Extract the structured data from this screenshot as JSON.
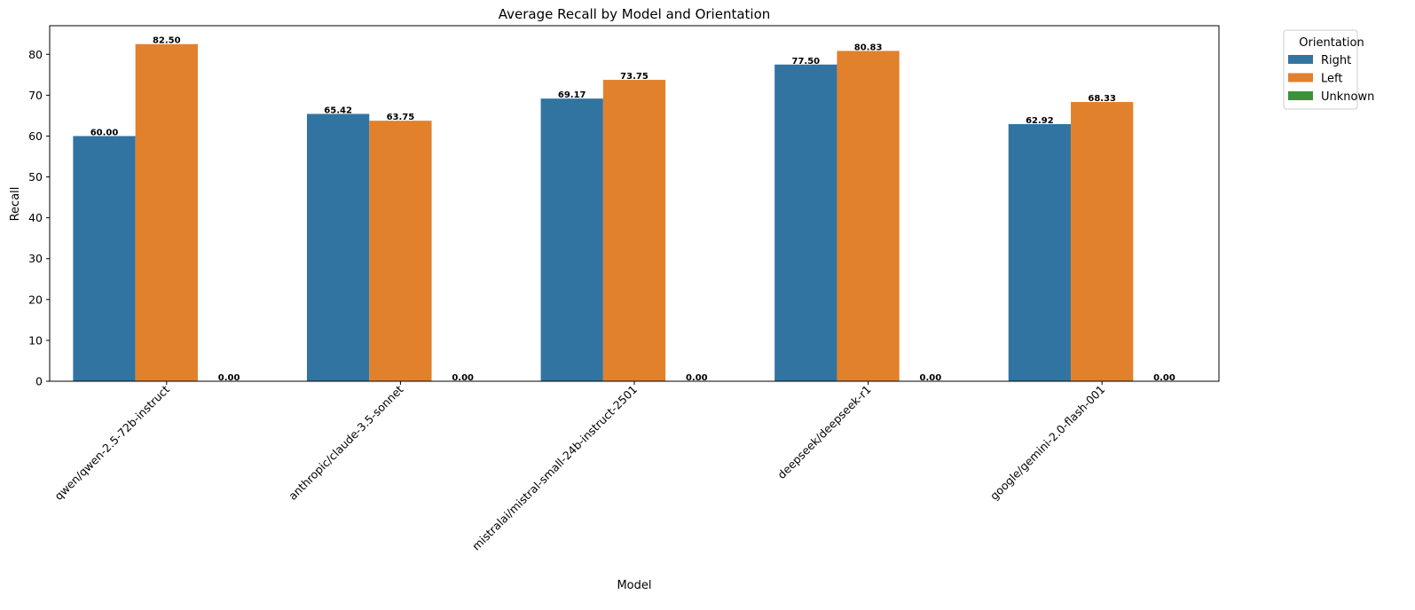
{
  "chart_data": {
    "type": "bar",
    "title": "Average Recall by Model and Orientation",
    "xlabel": "Model",
    "ylabel": "Recall",
    "ylim": [
      0,
      87
    ],
    "yticks": [
      0,
      10,
      20,
      30,
      40,
      50,
      60,
      70,
      80
    ],
    "grid": false,
    "legend_title": "Orientation",
    "legend_position": "outside-top-right",
    "categories": [
      "qwen/qwen-2.5-72b-instruct",
      "anthropic/claude-3.5-sonnet",
      "mistralai/mistral-small-24b-instruct-2501",
      "deepseek/deepseek-r1",
      "google/gemini-2.0-flash-001"
    ],
    "series": [
      {
        "name": "Right",
        "color": "#3274a1",
        "values": [
          60.0,
          65.42,
          69.17,
          77.5,
          62.92
        ],
        "labels": [
          "60.00",
          "65.42",
          "69.17",
          "77.50",
          "62.92"
        ]
      },
      {
        "name": "Left",
        "color": "#e1812c",
        "values": [
          82.5,
          63.75,
          73.75,
          80.83,
          68.33
        ],
        "labels": [
          "82.50",
          "63.75",
          "73.75",
          "80.83",
          "68.33"
        ]
      },
      {
        "name": "Unknown",
        "color": "#3a923a",
        "values": [
          0.0,
          0.0,
          0.0,
          0.0,
          0.0
        ],
        "labels": [
          "0.00",
          "0.00",
          "0.00",
          "0.00",
          "0.00"
        ]
      }
    ]
  }
}
